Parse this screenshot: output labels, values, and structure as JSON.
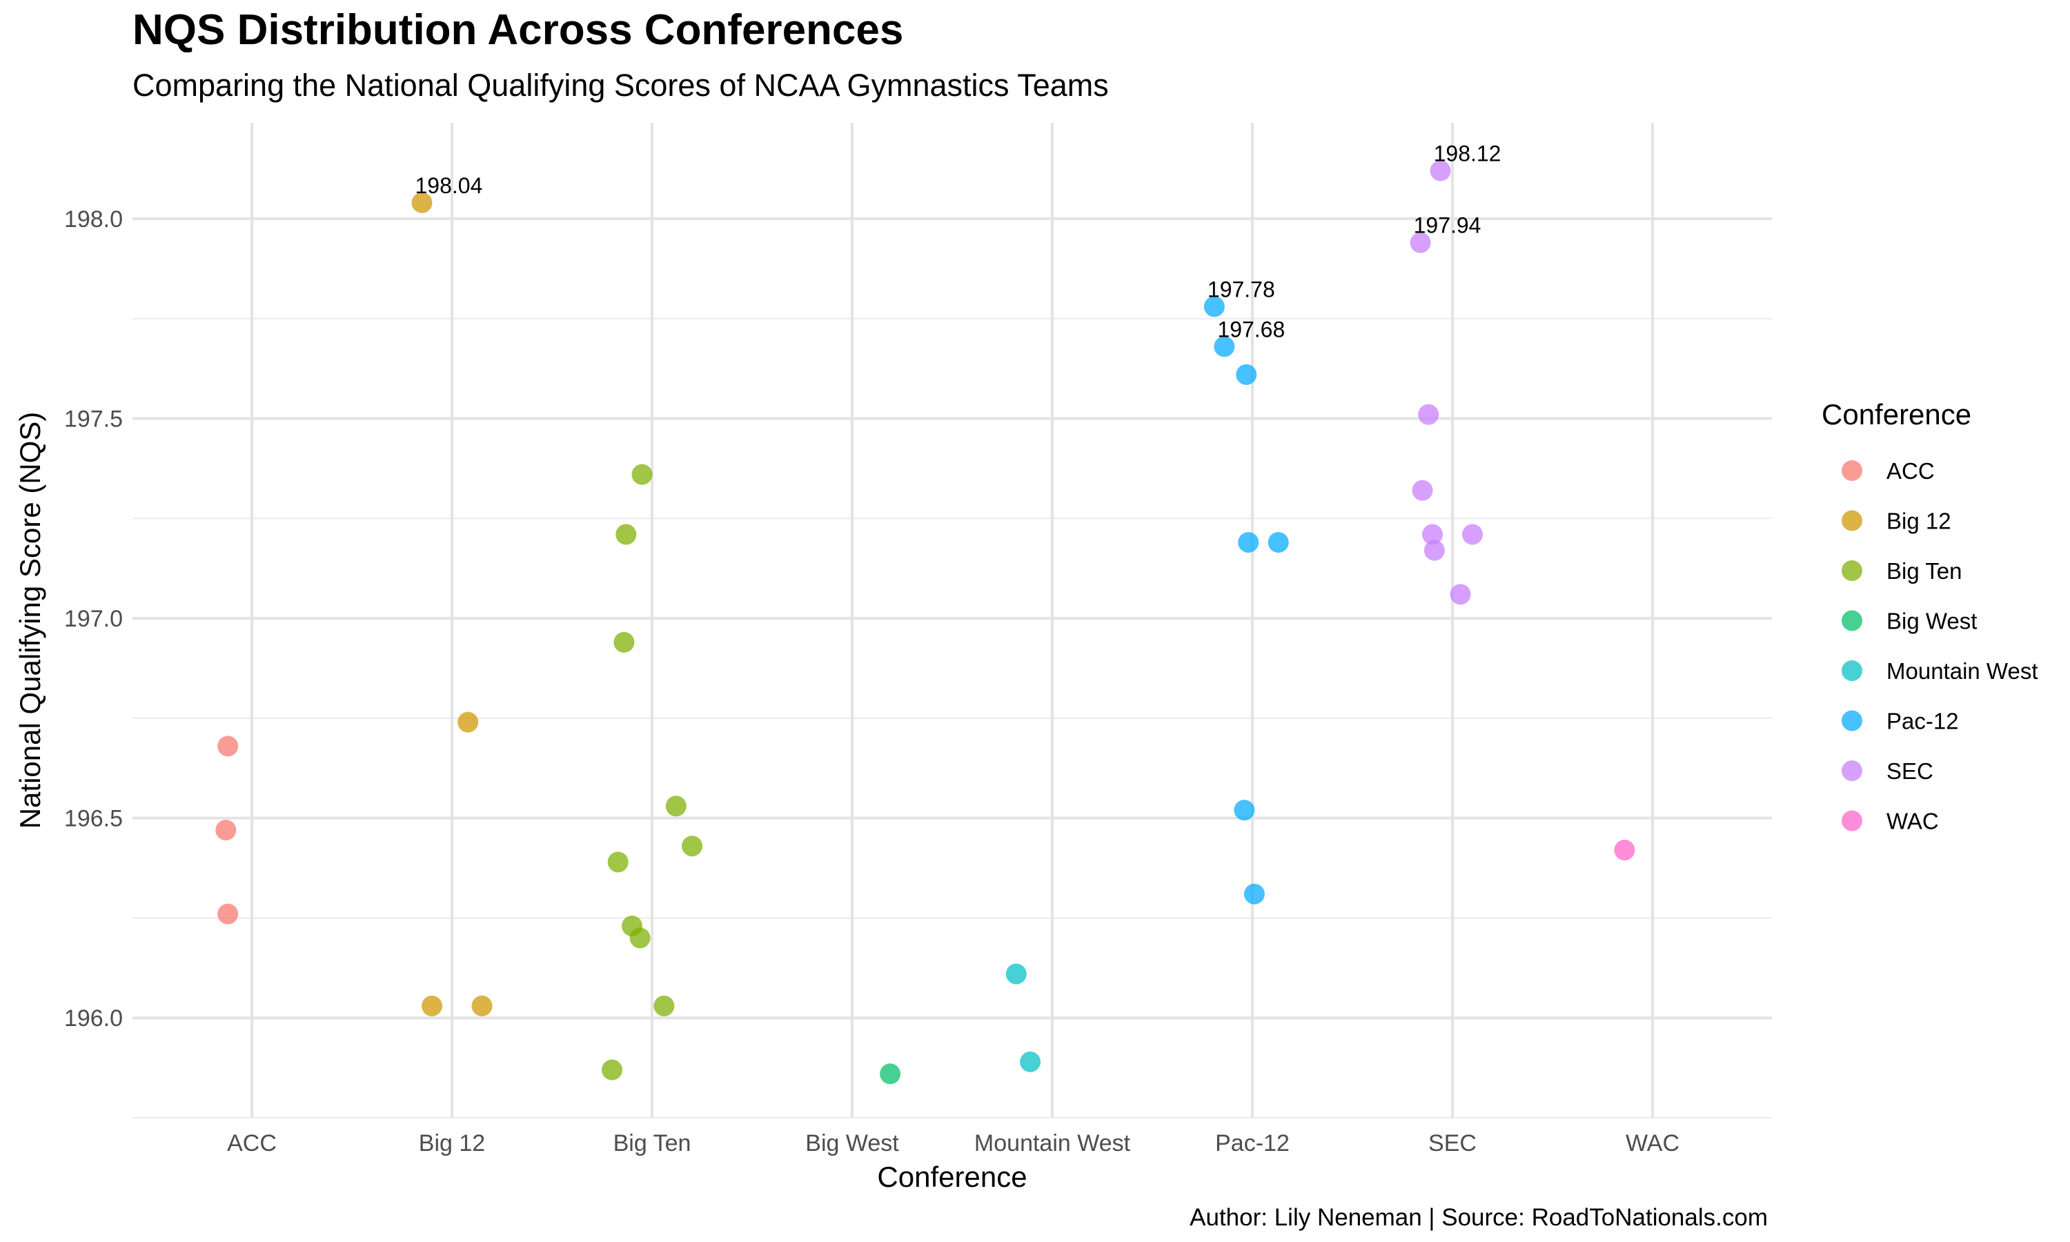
{
  "chart_data": {
    "type": "scatter",
    "title": "NQS Distribution Across Conferences",
    "subtitle": "Comparing the National Qualifying Scores of NCAA Gymnastics Teams",
    "caption": "Author: Lily Neneman | Source: RoadToNationals.com",
    "xlabel": "Conference",
    "ylabel": "National Qualifying Score (NQS)",
    "categories": [
      "ACC",
      "Big 12",
      "Big Ten",
      "Big West",
      "Mountain West",
      "Pac-12",
      "SEC",
      "WAC"
    ],
    "ylim": [
      195.75,
      198.24
    ],
    "yticks": [
      "196.0",
      "196.5",
      "197.0",
      "197.5",
      "198.0"
    ],
    "grid": true,
    "legend_title": "Conference",
    "legend_position": "right",
    "series": [
      {
        "name": "ACC",
        "color": "#F8766D",
        "points": [
          {
            "x": "ACC",
            "jitter": -0.12,
            "y": 196.68
          },
          {
            "x": "ACC",
            "jitter": -0.13,
            "y": 196.47
          },
          {
            "x": "ACC",
            "jitter": -0.12,
            "y": 196.26
          }
        ]
      },
      {
        "name": "Big 12",
        "color": "#CD9600",
        "points": [
          {
            "x": "Big 12",
            "jitter": -0.15,
            "y": 198.04,
            "label": "198.04"
          },
          {
            "x": "Big 12",
            "jitter": 0.08,
            "y": 196.74
          },
          {
            "x": "Big 12",
            "jitter": -0.1,
            "y": 196.03
          },
          {
            "x": "Big 12",
            "jitter": 0.15,
            "y": 196.03
          }
        ]
      },
      {
        "name": "Big Ten",
        "color": "#7CAE00",
        "points": [
          {
            "x": "Big Ten",
            "jitter": -0.05,
            "y": 197.36
          },
          {
            "x": "Big Ten",
            "jitter": -0.13,
            "y": 197.21
          },
          {
            "x": "Big Ten",
            "jitter": -0.14,
            "y": 196.94
          },
          {
            "x": "Big Ten",
            "jitter": 0.12,
            "y": 196.53
          },
          {
            "x": "Big Ten",
            "jitter": 0.2,
            "y": 196.43
          },
          {
            "x": "Big Ten",
            "jitter": -0.17,
            "y": 196.39
          },
          {
            "x": "Big Ten",
            "jitter": -0.1,
            "y": 196.23
          },
          {
            "x": "Big Ten",
            "jitter": -0.06,
            "y": 196.2
          },
          {
            "x": "Big Ten",
            "jitter": 0.06,
            "y": 196.03
          },
          {
            "x": "Big Ten",
            "jitter": -0.2,
            "y": 195.87
          }
        ]
      },
      {
        "name": "Big West",
        "color": "#00BE67",
        "points": [
          {
            "x": "Big West",
            "jitter": 0.19,
            "y": 195.86
          }
        ]
      },
      {
        "name": "Mountain West",
        "color": "#00BFC4",
        "points": [
          {
            "x": "Mountain West",
            "jitter": -0.18,
            "y": 196.11
          },
          {
            "x": "Mountain West",
            "jitter": -0.11,
            "y": 195.89
          }
        ]
      },
      {
        "name": "Pac-12",
        "color": "#00A9FF",
        "points": [
          {
            "x": "Pac-12",
            "jitter": -0.19,
            "y": 197.78,
            "label": "197.78"
          },
          {
            "x": "Pac-12",
            "jitter": -0.14,
            "y": 197.68,
            "label": "197.68"
          },
          {
            "x": "Pac-12",
            "jitter": -0.03,
            "y": 197.61
          },
          {
            "x": "Pac-12",
            "jitter": -0.02,
            "y": 197.19
          },
          {
            "x": "Pac-12",
            "jitter": 0.13,
            "y": 197.19
          },
          {
            "x": "Pac-12",
            "jitter": -0.04,
            "y": 196.52
          },
          {
            "x": "Pac-12",
            "jitter": 0.01,
            "y": 196.31
          }
        ]
      },
      {
        "name": "SEC",
        "color": "#C77CFF",
        "points": [
          {
            "x": "SEC",
            "jitter": -0.06,
            "y": 198.12,
            "label": "198.12"
          },
          {
            "x": "SEC",
            "jitter": -0.16,
            "y": 197.94,
            "label": "197.94"
          },
          {
            "x": "SEC",
            "jitter": -0.12,
            "y": 197.51
          },
          {
            "x": "SEC",
            "jitter": -0.15,
            "y": 197.32
          },
          {
            "x": "SEC",
            "jitter": -0.1,
            "y": 197.21
          },
          {
            "x": "SEC",
            "jitter": -0.09,
            "y": 197.17
          },
          {
            "x": "SEC",
            "jitter": 0.1,
            "y": 197.21
          },
          {
            "x": "SEC",
            "jitter": 0.04,
            "y": 197.06
          }
        ]
      },
      {
        "name": "WAC",
        "color": "#FF61CC",
        "points": [
          {
            "x": "WAC",
            "jitter": -0.14,
            "y": 196.42
          }
        ]
      }
    ]
  }
}
